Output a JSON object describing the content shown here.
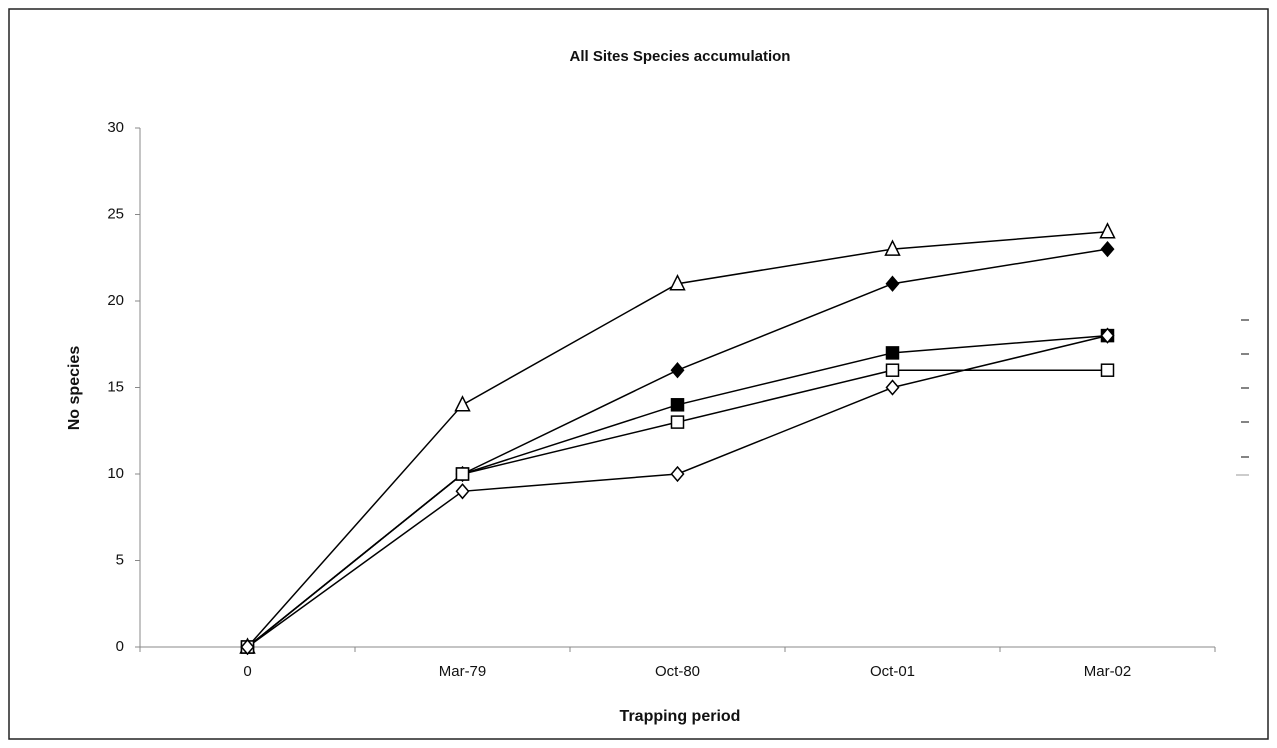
{
  "chart_data": {
    "type": "line",
    "title": "All Sites Species accumulation",
    "x_label": "Trapping period",
    "y_label": "No species",
    "categories": [
      "0",
      "Mar-79",
      "Oct-80",
      "Oct-01",
      "Mar-02"
    ],
    "series": [
      {
        "color": "#000000",
        "marker": "triangle",
        "filled": false,
        "values": [
          0,
          14,
          21,
          23,
          24
        ]
      },
      {
        "color": "#000000",
        "marker": "diamond",
        "filled": true,
        "values": [
          0,
          10,
          16,
          21,
          23
        ]
      },
      {
        "color": "#000000",
        "marker": "square",
        "filled": true,
        "values": [
          0,
          10,
          14,
          17,
          18
        ]
      },
      {
        "color": "#000000",
        "marker": "square",
        "filled": false,
        "values": [
          0,
          10,
          13,
          16,
          16
        ]
      },
      {
        "color": "#000000",
        "marker": "diamond",
        "filled": false,
        "values": [
          0,
          9,
          10,
          15,
          18
        ]
      }
    ],
    "ylim": [
      0,
      30
    ],
    "yticks": [
      0,
      5,
      10,
      15,
      20,
      25,
      30
    ],
    "grid": false
  }
}
